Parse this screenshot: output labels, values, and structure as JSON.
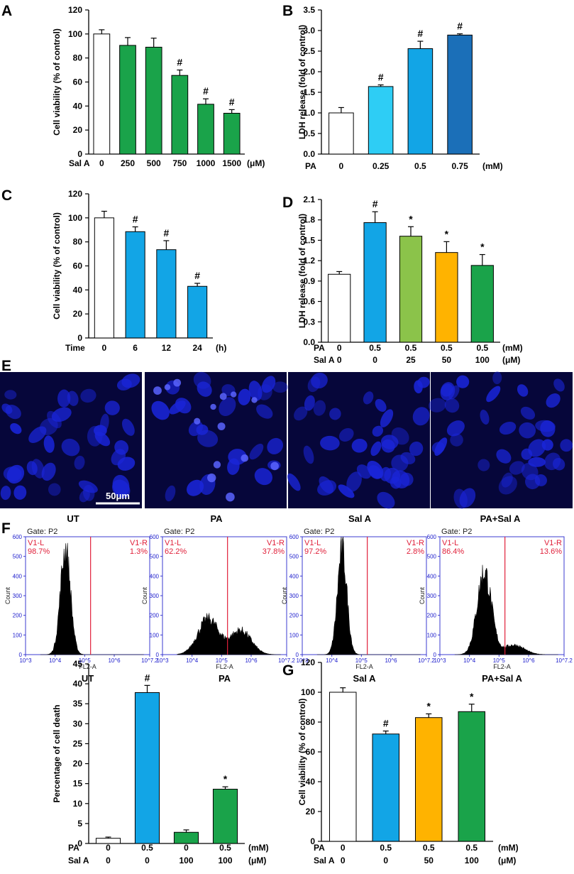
{
  "panel_labels": [
    "A",
    "B",
    "C",
    "D",
    "E",
    "F",
    "G"
  ],
  "colors": {
    "white": "#ffffff",
    "green": "#1aa34a",
    "light_cyan": "#2ecdf5",
    "blue": "#12a5e6",
    "dark_blue": "#1b6fb8",
    "lime": "#8bc34a",
    "orange": "#ffb300",
    "nuclei": "#1a25d8",
    "red_gate": "#e0203a"
  },
  "chart_data": [
    {
      "id": "A",
      "type": "bar",
      "ylabel": "Cell viability (% of control)",
      "ylim": [
        0,
        120
      ],
      "yticks": [
        0,
        20,
        40,
        60,
        80,
        100,
        120
      ],
      "categories": [
        "0",
        "250",
        "500",
        "750",
        "1000",
        "1500"
      ],
      "row_labels": [
        {
          "name": "Sal A",
          "unit": "(μM)",
          "values": [
            "0",
            "250",
            "500",
            "750",
            "1000",
            "1500"
          ]
        }
      ],
      "values": [
        100,
        90.5,
        89,
        65.5,
        41.5,
        34
      ],
      "errors": [
        3.5,
        6.5,
        7.5,
        4.5,
        4.5,
        3
      ],
      "colors": [
        "white",
        "green",
        "green",
        "green",
        "green",
        "green"
      ],
      "annotations": [
        "",
        "",
        "",
        "#",
        "#",
        "#"
      ]
    },
    {
      "id": "B",
      "type": "bar",
      "ylabel": "LDH release (fold of control)",
      "ylim": [
        0,
        3.5
      ],
      "yticks": [
        "0.0",
        "0.5",
        "1.0",
        "1.5",
        "2.0",
        "2.5",
        "3.0",
        "3.5"
      ],
      "categories": [
        "0",
        "0.25",
        "0.5",
        "0.75"
      ],
      "row_labels": [
        {
          "name": "PA",
          "unit": "(mM)",
          "values": [
            "0",
            "0.25",
            "0.5",
            "0.75"
          ]
        }
      ],
      "values": [
        1.0,
        1.64,
        2.56,
        2.89
      ],
      "errors": [
        0.13,
        0.04,
        0.18,
        0.03
      ],
      "colors": [
        "white",
        "light_cyan",
        "blue",
        "dark_blue"
      ],
      "annotations": [
        "",
        "#",
        "#",
        "#"
      ]
    },
    {
      "id": "C",
      "type": "bar",
      "ylabel": "Cell viability (% of control)",
      "ylim": [
        0,
        120
      ],
      "yticks": [
        0,
        20,
        40,
        60,
        80,
        100,
        120
      ],
      "categories": [
        "0",
        "6",
        "12",
        "24"
      ],
      "row_labels": [
        {
          "name": "Time",
          "unit": "(h)",
          "values": [
            "0",
            "6",
            "12",
            "24"
          ]
        }
      ],
      "values": [
        100,
        88.5,
        73.5,
        43
      ],
      "errors": [
        5.5,
        4,
        7.5,
        2.5
      ],
      "colors": [
        "white",
        "blue",
        "blue",
        "blue"
      ],
      "annotations": [
        "",
        "#",
        "#",
        "#"
      ]
    },
    {
      "id": "D",
      "type": "bar",
      "ylabel": "LDH release (fold of control)",
      "ylim": [
        0,
        2.1
      ],
      "yticks": [
        "0.0",
        "0.3",
        "0.6",
        "0.9",
        "1.2",
        "1.5",
        "1.8",
        "2.1"
      ],
      "categories": [
        "0/0",
        "0.5/0",
        "0.5/25",
        "0.5/50",
        "0.5/100"
      ],
      "row_labels": [
        {
          "name": "PA",
          "unit": "(mM)",
          "values": [
            "0",
            "0.5",
            "0.5",
            "0.5",
            "0.5"
          ]
        },
        {
          "name": "Sal A",
          "unit": "(μM)",
          "values": [
            "0",
            "0",
            "25",
            "50",
            "100"
          ]
        }
      ],
      "values": [
        1.0,
        1.76,
        1.56,
        1.32,
        1.13
      ],
      "errors": [
        0.04,
        0.16,
        0.14,
        0.16,
        0.16
      ],
      "colors": [
        "white",
        "blue",
        "lime",
        "orange",
        "green"
      ],
      "annotations": [
        "",
        "#",
        "*",
        "*",
        "*"
      ]
    },
    {
      "id": "F_bar",
      "type": "bar",
      "ylabel": "Percentage of cell death",
      "ylim": [
        0,
        45
      ],
      "yticks": [
        0,
        5,
        10,
        15,
        20,
        25,
        30,
        35,
        40,
        45
      ],
      "categories": [
        "0/0",
        "0.5/0",
        "0/100",
        "0.5/100"
      ],
      "row_labels": [
        {
          "name": "PA",
          "unit": "(mM)",
          "values": [
            "0",
            "0.5",
            "0",
            "0.5"
          ]
        },
        {
          "name": "Sal A",
          "unit": "(μM)",
          "values": [
            "0",
            "0",
            "100",
            "100"
          ]
        }
      ],
      "values": [
        1.3,
        37.8,
        2.8,
        13.6
      ],
      "errors": [
        0.3,
        1.8,
        0.6,
        0.6
      ],
      "colors": [
        "white",
        "blue",
        "green",
        "green"
      ],
      "annotations": [
        "",
        "#",
        "",
        "*"
      ]
    },
    {
      "id": "G",
      "type": "bar",
      "ylabel": "Cell viability (% of control)",
      "ylim": [
        0,
        120
      ],
      "yticks": [
        0,
        20,
        40,
        60,
        80,
        100,
        120
      ],
      "categories": [
        "0/0",
        "0.5/0",
        "0.5/50",
        "0.5/100"
      ],
      "row_labels": [
        {
          "name": "PA",
          "unit": "(mM)",
          "values": [
            "0",
            "0.5",
            "0.5",
            "0.5"
          ]
        },
        {
          "name": "Sal A",
          "unit": "(μM)",
          "values": [
            "0",
            "0",
            "50",
            "100"
          ]
        }
      ],
      "values": [
        100,
        72,
        83,
        87
      ],
      "errors": [
        3,
        2,
        2.5,
        5
      ],
      "colors": [
        "white",
        "blue",
        "orange",
        "green"
      ],
      "annotations": [
        "",
        "#",
        "*",
        "*"
      ]
    }
  ],
  "microscopy": {
    "scale_bar_label": "50μm",
    "captions": [
      "UT",
      "PA",
      "Sal A",
      "PA+Sal A"
    ]
  },
  "flow": {
    "gate_label": "Gate: P2",
    "count_label": "Count",
    "x_label": "FL2-A",
    "y_ticks": [
      "0",
      "100",
      "200",
      "300",
      "400",
      "500",
      "600"
    ],
    "x_ticks": [
      "10^3",
      "10^4",
      "10^5",
      "10^6",
      "10^7.2"
    ],
    "left_gate": "V1-L",
    "right_gate": "V1-R",
    "panels": [
      {
        "caption": "UT",
        "left_pct": "98.7%",
        "right_pct": "1.3%",
        "peaks": [
          {
            "center": 4.35,
            "width": 0.17,
            "height": 550
          }
        ]
      },
      {
        "caption": "PA",
        "left_pct": "62.2%",
        "right_pct": "37.8%",
        "peaks": [
          {
            "center": 4.55,
            "width": 0.35,
            "height": 185
          },
          {
            "center": 5.65,
            "width": 0.35,
            "height": 125
          }
        ]
      },
      {
        "caption": "Sal A",
        "left_pct": "97.2%",
        "right_pct": "2.8%",
        "peaks": [
          {
            "center": 4.35,
            "width": 0.16,
            "height": 540
          }
        ]
      },
      {
        "caption": "PA+Sal A",
        "left_pct": "86.4%",
        "right_pct": "13.6%",
        "peaks": [
          {
            "center": 4.5,
            "width": 0.24,
            "height": 430
          },
          {
            "center": 5.5,
            "width": 0.35,
            "height": 50
          }
        ]
      }
    ]
  }
}
